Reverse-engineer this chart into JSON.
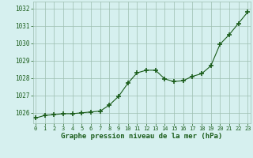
{
  "x": [
    0,
    1,
    2,
    3,
    4,
    5,
    6,
    7,
    8,
    9,
    10,
    11,
    12,
    13,
    14,
    15,
    16,
    17,
    18,
    19,
    20,
    21,
    22,
    23
  ],
  "y": [
    1025.7,
    1025.85,
    1025.9,
    1025.95,
    1025.95,
    1026.0,
    1026.05,
    1026.1,
    1026.45,
    1026.95,
    1027.7,
    1028.3,
    1028.45,
    1028.45,
    1027.95,
    1027.8,
    1027.85,
    1028.1,
    1028.25,
    1028.7,
    1029.95,
    1030.5,
    1031.15,
    1031.8
  ],
  "line_color": "#1a5c1a",
  "marker": "+",
  "marker_size": 4,
  "bg_color": "#d6f0ef",
  "grid_color": "#9dbfb0",
  "xlabel": "Graphe pression niveau de la mer (hPa)",
  "xlabel_color": "#1a5c1a",
  "tick_color": "#1a5c1a",
  "ylim": [
    1025.4,
    1032.4
  ],
  "yticks": [
    1026,
    1027,
    1028,
    1029,
    1030,
    1031,
    1032
  ],
  "xticks": [
    0,
    1,
    2,
    3,
    4,
    5,
    6,
    7,
    8,
    9,
    10,
    11,
    12,
    13,
    14,
    15,
    16,
    17,
    18,
    19,
    20,
    21,
    22,
    23
  ],
  "xlim": [
    -0.3,
    23.3
  ]
}
